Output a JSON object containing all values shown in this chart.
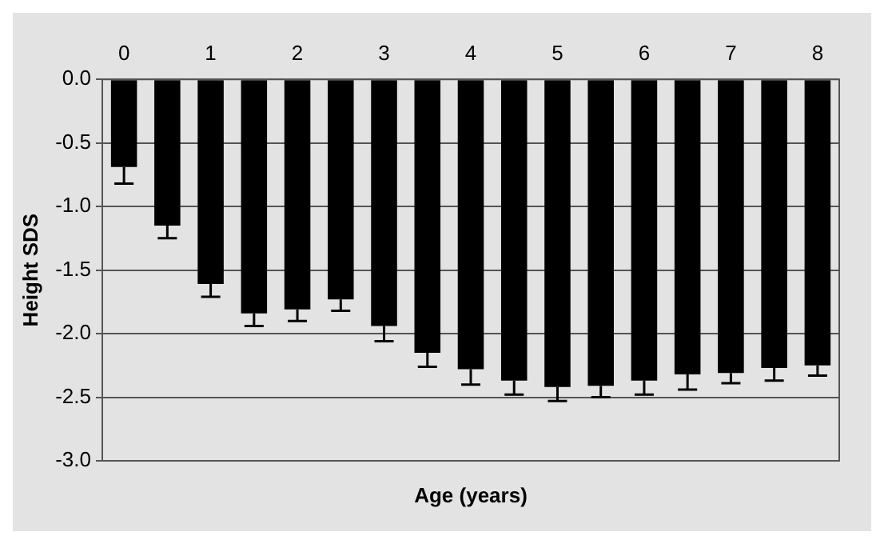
{
  "chart_data": {
    "type": "bar",
    "xlabel": "Age (years)",
    "ylabel": "Height SDS",
    "categories": [
      "0",
      null,
      "1",
      null,
      "2",
      null,
      "3",
      null,
      "4",
      null,
      "5",
      null,
      "6",
      null,
      "7",
      null,
      "8"
    ],
    "values": [
      -0.69,
      -1.15,
      -1.61,
      -1.84,
      -1.81,
      -1.73,
      -1.94,
      -2.15,
      -2.28,
      -2.37,
      -2.42,
      -2.41,
      -2.37,
      -2.32,
      -2.31,
      -2.27,
      -2.25
    ],
    "errors": [
      [
        -0.82,
        -0.69
      ],
      [
        -1.25,
        -1.15
      ],
      [
        -1.71,
        -1.61
      ],
      [
        -1.94,
        -1.84
      ],
      [
        -1.9,
        -1.81
      ],
      [
        -1.82,
        -1.73
      ],
      [
        -2.06,
        -1.94
      ],
      [
        -2.26,
        -2.15
      ],
      [
        -2.4,
        -2.28
      ],
      [
        -2.48,
        -2.37
      ],
      [
        -2.53,
        -2.42
      ],
      [
        -2.5,
        -2.41
      ],
      [
        -2.48,
        -2.37
      ],
      [
        -2.44,
        -2.32
      ],
      [
        -2.39,
        -2.31
      ],
      [
        -2.37,
        -2.27
      ],
      [
        -2.33,
        -2.25
      ]
    ],
    "color": "#000000",
    "ylim": [
      -3,
      0
    ],
    "yticks": [
      {
        "value": 0,
        "label": "0.0"
      },
      {
        "value": -0.5,
        "label": "-0.5"
      },
      {
        "value": -1,
        "label": "-1.0"
      },
      {
        "value": -1.5,
        "label": "-1.5"
      },
      {
        "value": -2,
        "label": "-2.0"
      },
      {
        "value": -2.5,
        "label": "-2.5"
      },
      {
        "value": -3,
        "label": "-3.0"
      }
    ],
    "grid": "y",
    "legend": false
  }
}
